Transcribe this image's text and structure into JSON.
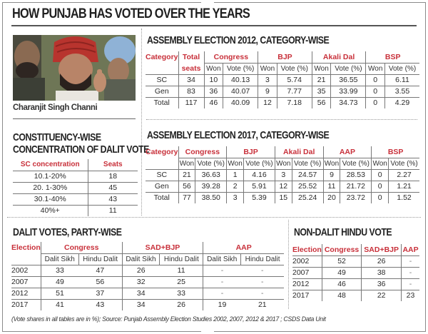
{
  "title": "HOW PUNJAB HAS VOTED OVER THE YEARS",
  "photo": {
    "caption": "Charanjit Singh Channi",
    "icon": "person-photo"
  },
  "constituency": {
    "title_line1": "CONSTITUENCY-WISE",
    "title_line2": "CONCENTRATION OF DALIT VOTE",
    "headers": [
      "SC concentration",
      "Seats"
    ],
    "rows": [
      [
        "10.1-20%",
        "18"
      ],
      [
        "20. 1-30%",
        "45"
      ],
      [
        "30.1-40%",
        "43"
      ],
      [
        "40%+",
        "11"
      ]
    ]
  },
  "ae2012": {
    "title": "ASSEMBLY ELECTION 2012, CATEGORY-WISE",
    "h_category": "Category",
    "h_total_line1": "Total",
    "h_total_line2": "seats",
    "parties": [
      "Congress",
      "BJP",
      "Akali Dal",
      "BSP"
    ],
    "sub_won": "Won",
    "sub_vote": "Vote (%)",
    "rows": [
      {
        "cat": "SC",
        "total": "34",
        "vals": [
          "10",
          "40.13",
          "3",
          "5.74",
          "21",
          "36.55",
          "0",
          "6.11"
        ]
      },
      {
        "cat": "Gen",
        "total": "83",
        "vals": [
          "36",
          "40.07",
          "9",
          "7.77",
          "35",
          "33.99",
          "0",
          "3.55"
        ]
      },
      {
        "cat": "Total",
        "total": "117",
        "vals": [
          "46",
          "40.09",
          "12",
          "7.18",
          "56",
          "34.73",
          "0",
          "4.29"
        ]
      }
    ]
  },
  "ae2017": {
    "title": "ASSEMBLY ELECTION 2017, CATEGORY-WISE",
    "h_category": "Category",
    "parties": [
      "Congress",
      "BJP",
      "Akali Dal",
      "AAP",
      "BSP"
    ],
    "sub_won": "Won",
    "sub_vote": "Vote (%)",
    "rows": [
      {
        "cat": "SC",
        "total": "21",
        "vals": [
          "36.63",
          "1",
          "4.16",
          "3",
          "24.57",
          "9",
          "28.53",
          "0",
          "2.27"
        ]
      },
      {
        "cat": "Gen",
        "total": "56",
        "vals": [
          "39.28",
          "2",
          "5.91",
          "12",
          "25.52",
          "11",
          "21.72",
          "0",
          "1.21"
        ]
      },
      {
        "cat": "Total",
        "total": "77",
        "vals": [
          "38.50",
          "3",
          "5.39",
          "15",
          "25.24",
          "20",
          "23.72",
          "0",
          "1.52"
        ]
      }
    ]
  },
  "dalit": {
    "title": "DALIT VOTES, PARTY-WISE",
    "h_election": "Election",
    "parties": [
      "Congress",
      "SAD+BJP",
      "AAP"
    ],
    "subs": [
      "Dalit Sikh",
      "Hindu Dalit"
    ],
    "rows": [
      {
        "year": "2002",
        "vals": [
          "33",
          "47",
          "26",
          "11",
          "-",
          "-"
        ]
      },
      {
        "year": "2007",
        "vals": [
          "49",
          "56",
          "32",
          "25",
          "-",
          "-"
        ]
      },
      {
        "year": "2012",
        "vals": [
          "51",
          "37",
          "34",
          "33",
          "-",
          "-"
        ]
      },
      {
        "year": "2017",
        "vals": [
          "41",
          "43",
          "34",
          "26",
          "19",
          "21"
        ]
      }
    ]
  },
  "nondalit": {
    "title": "NON-DALIT HINDU VOTE",
    "headers": [
      "Election",
      "Congress",
      "SAD+BJP",
      "AAP"
    ],
    "rows": [
      [
        "2002",
        "52",
        "26",
        "-"
      ],
      [
        "2007",
        "49",
        "38",
        "-"
      ],
      [
        "2012",
        "46",
        "36",
        "-"
      ],
      [
        "2017",
        "48",
        "22",
        "23"
      ]
    ]
  },
  "footnote": "(Vote shares in all tables are in %); Source: Punjab Assembly Election Studies 2002, 2007, 2012 & 2017 ; CSDS Data Unit",
  "colors": {
    "header_red": "#c8303a",
    "rule": "#555555"
  }
}
